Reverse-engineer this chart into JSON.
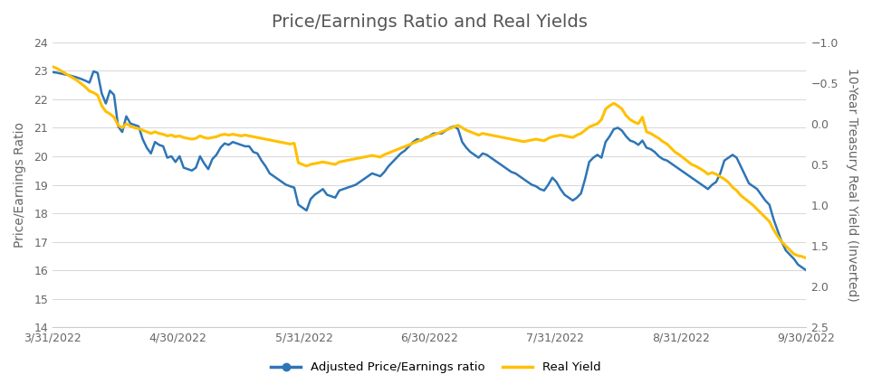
{
  "title": "Price/Earnings Ratio and Real Yields",
  "ylabel_left": "Price/Earnings Ratio",
  "ylabel_right": "10-Year Treasury Real Yield (Inverted)",
  "ylim_left": [
    14,
    24
  ],
  "ylim_right": [
    2.5,
    -1
  ],
  "yticks_left": [
    14,
    15,
    16,
    17,
    18,
    19,
    20,
    21,
    22,
    23,
    24
  ],
  "yticks_right": [
    -1,
    -0.5,
    0,
    0.5,
    1,
    1.5,
    2,
    2.5
  ],
  "xtick_labels": [
    "3/31/2022",
    "4/30/2022",
    "5/31/2022",
    "6/30/2022",
    "7/31/2022",
    "8/31/2022",
    "9/30/2022"
  ],
  "line_pe_color": "#2e75b6",
  "line_ry_color": "#ffc000",
  "legend_labels": [
    "Adjusted Price/Earnings ratio",
    "Real Yield"
  ],
  "pe_data": [
    22.95,
    22.93,
    22.9,
    22.87,
    22.84,
    22.8,
    22.76,
    22.71,
    22.65,
    22.58,
    22.98,
    22.92,
    22.2,
    21.85,
    22.3,
    22.15,
    21.05,
    20.85,
    21.4,
    21.15,
    21.1,
    21.05,
    20.6,
    20.3,
    20.1,
    20.5,
    20.4,
    20.35,
    19.95,
    20.0,
    19.8,
    20.0,
    19.6,
    19.55,
    19.5,
    19.6,
    20.0,
    19.75,
    19.55,
    19.9,
    20.05,
    20.3,
    20.45,
    20.4,
    20.5,
    20.45,
    20.4,
    20.35,
    20.35,
    20.15,
    20.1,
    19.85,
    19.65,
    19.4,
    19.3,
    19.2,
    19.1,
    19.0,
    18.95,
    18.9,
    18.3,
    18.2,
    18.1,
    18.5,
    18.65,
    18.75,
    18.85,
    18.65,
    18.6,
    18.55,
    18.8,
    18.85,
    18.9,
    18.95,
    19.0,
    19.1,
    19.2,
    19.3,
    19.4,
    19.35,
    19.3,
    19.45,
    19.65,
    19.8,
    19.95,
    20.1,
    20.2,
    20.35,
    20.5,
    20.6,
    20.55,
    20.65,
    20.7,
    20.8,
    20.8,
    20.8,
    20.9,
    21.0,
    21.05,
    20.95,
    20.5,
    20.3,
    20.15,
    20.05,
    19.95,
    20.1,
    20.05,
    19.95,
    19.85,
    19.75,
    19.65,
    19.55,
    19.45,
    19.4,
    19.3,
    19.2,
    19.1,
    19.0,
    18.95,
    18.85,
    18.8,
    19.0,
    19.25,
    19.1,
    18.85,
    18.65,
    18.55,
    18.45,
    18.55,
    18.7,
    19.2,
    19.8,
    19.95,
    20.05,
    19.95,
    20.5,
    20.7,
    20.95,
    21.0,
    20.9,
    20.7,
    20.55,
    20.5,
    20.4,
    20.55,
    20.3,
    20.25,
    20.15,
    20.0,
    19.9,
    19.85,
    19.75,
    19.65,
    19.55,
    19.45,
    19.35,
    19.25,
    19.15,
    19.05,
    18.95,
    18.85,
    19.0,
    19.1,
    19.4,
    19.85,
    19.95,
    20.05,
    19.95,
    19.65,
    19.35,
    19.05,
    18.95,
    18.85,
    18.65,
    18.45,
    18.3,
    17.8,
    17.4,
    17.0,
    16.7,
    16.55,
    16.4,
    16.2,
    16.1,
    16.0
  ],
  "ry_data": [
    -0.7,
    -0.68,
    -0.65,
    -0.62,
    -0.59,
    -0.56,
    -0.53,
    -0.49,
    -0.45,
    -0.4,
    -0.38,
    -0.35,
    -0.22,
    -0.15,
    -0.12,
    -0.08,
    0.02,
    0.05,
    0.0,
    0.03,
    0.05,
    0.06,
    0.08,
    0.1,
    0.12,
    0.1,
    0.12,
    0.13,
    0.15,
    0.14,
    0.16,
    0.15,
    0.17,
    0.18,
    0.19,
    0.18,
    0.15,
    0.17,
    0.18,
    0.17,
    0.16,
    0.14,
    0.13,
    0.14,
    0.13,
    0.14,
    0.15,
    0.14,
    0.15,
    0.16,
    0.17,
    0.18,
    0.19,
    0.2,
    0.21,
    0.22,
    0.23,
    0.24,
    0.25,
    0.24,
    0.48,
    0.5,
    0.52,
    0.5,
    0.49,
    0.48,
    0.47,
    0.48,
    0.49,
    0.5,
    0.47,
    0.46,
    0.45,
    0.44,
    0.43,
    0.42,
    0.41,
    0.4,
    0.39,
    0.4,
    0.41,
    0.38,
    0.36,
    0.34,
    0.32,
    0.3,
    0.28,
    0.26,
    0.24,
    0.22,
    0.2,
    0.18,
    0.16,
    0.14,
    0.12,
    0.1,
    0.08,
    0.06,
    0.04,
    0.02,
    0.05,
    0.08,
    0.1,
    0.12,
    0.14,
    0.12,
    0.13,
    0.14,
    0.15,
    0.16,
    0.17,
    0.18,
    0.19,
    0.2,
    0.21,
    0.22,
    0.21,
    0.2,
    0.19,
    0.2,
    0.21,
    0.18,
    0.16,
    0.15,
    0.14,
    0.15,
    0.16,
    0.17,
    0.14,
    0.12,
    0.08,
    0.04,
    0.02,
    0.0,
    -0.05,
    -0.18,
    -0.22,
    -0.25,
    -0.22,
    -0.18,
    -0.1,
    -0.05,
    -0.02,
    0.0,
    -0.08,
    0.1,
    0.12,
    0.15,
    0.18,
    0.22,
    0.25,
    0.3,
    0.35,
    0.38,
    0.42,
    0.46,
    0.5,
    0.52,
    0.55,
    0.58,
    0.62,
    0.6,
    0.62,
    0.65,
    0.68,
    0.72,
    0.78,
    0.82,
    0.88,
    0.92,
    0.96,
    1.0,
    1.05,
    1.1,
    1.15,
    1.2,
    1.3,
    1.38,
    1.45,
    1.5,
    1.55,
    1.6,
    1.62,
    1.63,
    1.65
  ]
}
